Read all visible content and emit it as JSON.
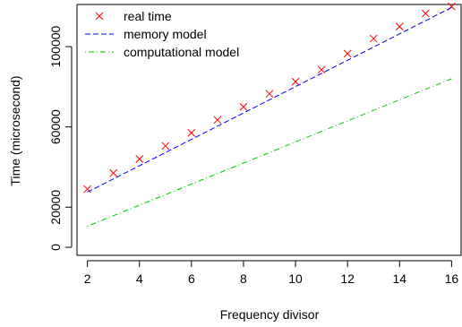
{
  "chart_data": {
    "type": "scatter",
    "title": "",
    "xlabel": "Frequency divisor",
    "ylabel": "Time (microsecond)",
    "xlim": [
      1.6,
      16.4
    ],
    "ylim": [
      -4000,
      121000
    ],
    "x_ticks": [
      2,
      4,
      6,
      8,
      10,
      12,
      14,
      16
    ],
    "x_tick_labels": [
      "2",
      "4",
      "6",
      "8",
      "10",
      "12",
      "14",
      "16"
    ],
    "y_ticks": [
      0,
      20000,
      60000,
      100000
    ],
    "y_tick_labels": [
      "0",
      "20000",
      "60000",
      "100000"
    ],
    "grid": false,
    "legend_position": "top-left",
    "series": [
      {
        "name": "real time",
        "kind": "points",
        "marker": "x",
        "color": "#ff0000",
        "x": [
          2,
          3,
          4,
          5,
          6,
          7,
          8,
          9,
          10,
          11,
          12,
          13,
          14,
          15,
          16
        ],
        "y": [
          29000,
          37000,
          44000,
          50500,
          57000,
          63500,
          70000,
          76500,
          82500,
          88500,
          96500,
          104000,
          110000,
          116500,
          120000
        ]
      },
      {
        "name": "memory model",
        "kind": "line",
        "dash": "dashed",
        "color": "#0000ff",
        "x": [
          2,
          16
        ],
        "y": [
          27500,
          119500
        ]
      },
      {
        "name": "computational model",
        "kind": "line",
        "dash": "dotdash",
        "color": "#00cc00",
        "x": [
          2,
          16
        ],
        "y": [
          10500,
          84000
        ]
      }
    ]
  }
}
